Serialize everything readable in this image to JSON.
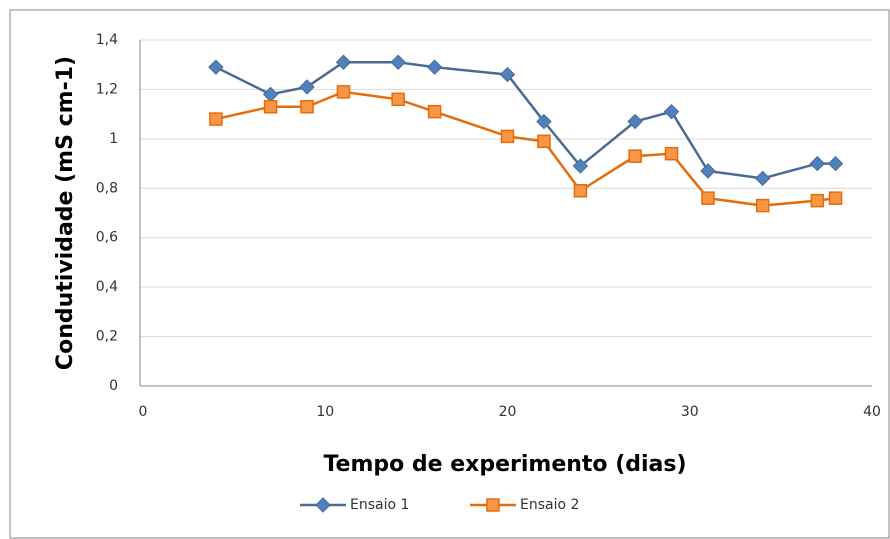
{
  "chart_data": {
    "type": "line",
    "x_label": "Tempo de experimento (dias)",
    "y_label": "Condutividade (mS cm-1)",
    "x": [
      4,
      7,
      9,
      11,
      14,
      16,
      20,
      22,
      24,
      27,
      29,
      31,
      34,
      37,
      38
    ],
    "series": [
      {
        "name": "Ensaio 1",
        "color": "#4a6a96",
        "marker": "diamond",
        "marker_color": "#4f81bd",
        "values": [
          1.29,
          1.18,
          1.21,
          1.31,
          1.31,
          1.29,
          1.26,
          1.07,
          0.89,
          1.07,
          1.11,
          0.87,
          0.84,
          0.9,
          0.9
        ]
      },
      {
        "name": "Ensaio 2",
        "color": "#e46c0a",
        "marker": "square",
        "marker_color": "#f79646",
        "values": [
          1.08,
          1.13,
          1.13,
          1.19,
          1.16,
          1.11,
          1.01,
          0.99,
          0.79,
          0.93,
          0.94,
          0.76,
          0.73,
          0.75,
          0.76
        ]
      }
    ],
    "xlim": [
      0,
      40
    ],
    "xticks": [
      0,
      10,
      20,
      30,
      40
    ],
    "ylim": [
      0,
      1.4
    ],
    "yticks": [
      0,
      {
        "value": 0.2,
        "label": "0,2"
      },
      {
        "value": 0.4,
        "label": "0,4"
      },
      {
        "value": 0.6,
        "label": "0,6"
      },
      {
        "value": 0.8,
        "label": "0,8"
      },
      1,
      {
        "value": 1.2,
        "label": "1,2"
      },
      {
        "value": 1.4,
        "label": "1,4"
      }
    ],
    "grid": true,
    "legend": "bottom"
  }
}
